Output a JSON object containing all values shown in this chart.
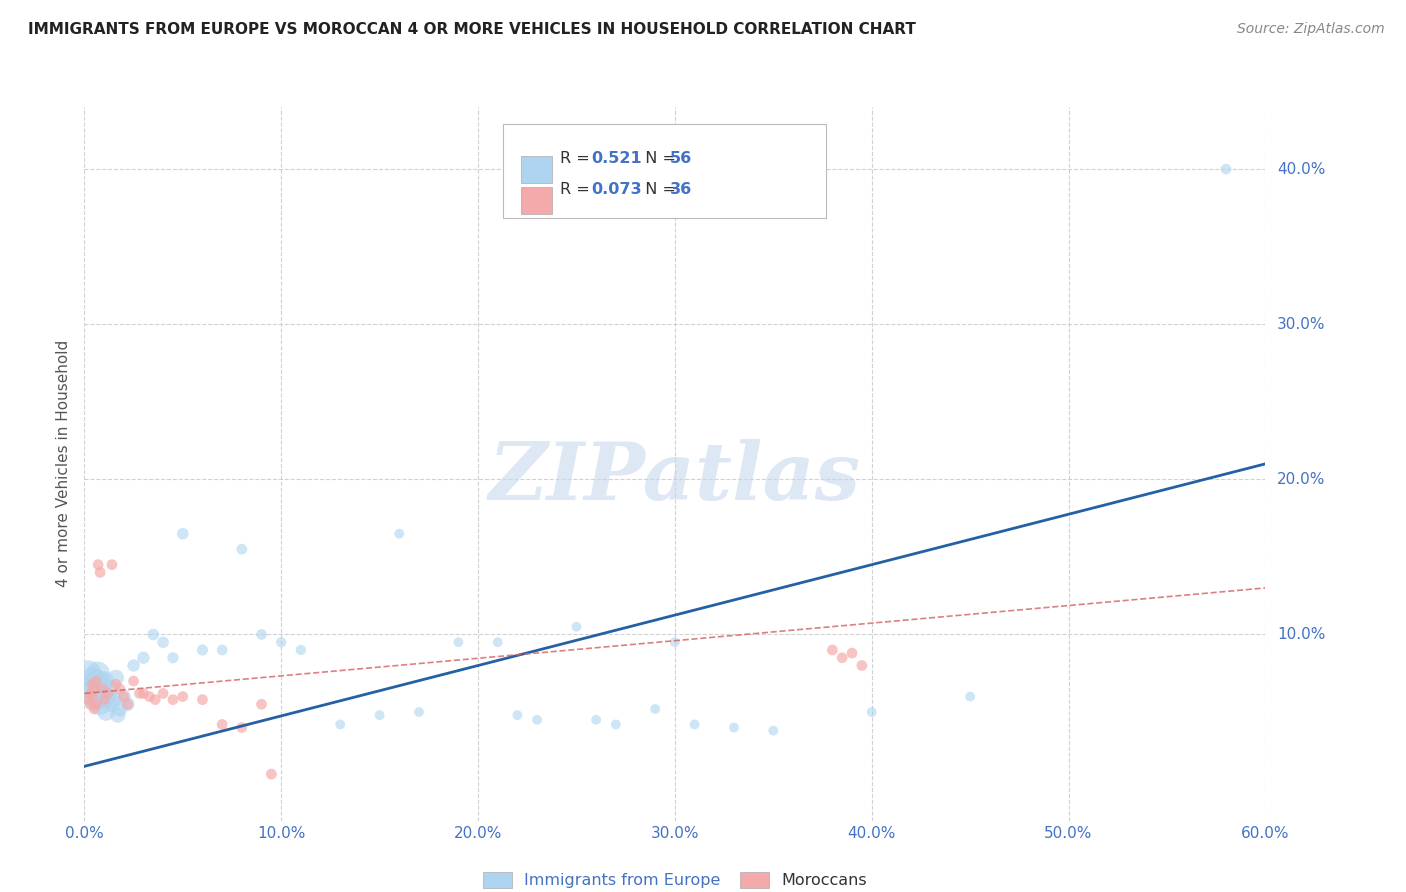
{
  "title": "IMMIGRANTS FROM EUROPE VS MOROCCAN 4 OR MORE VEHICLES IN HOUSEHOLD CORRELATION CHART",
  "source": "Source: ZipAtlas.com",
  "tick_color": "#4472C4",
  "ylabel": "4 or more Vehicles in Household",
  "xlim": [
    0.0,
    0.6
  ],
  "ylim": [
    -0.02,
    0.44
  ],
  "xticks": [
    0.0,
    0.1,
    0.2,
    0.3,
    0.4,
    0.5,
    0.6
  ],
  "yticks": [
    0.1,
    0.2,
    0.3,
    0.4
  ],
  "xtick_labels": [
    "0.0%",
    "10.0%",
    "20.0%",
    "30.0%",
    "40.0%",
    "50.0%",
    "60.0%"
  ],
  "ytick_labels": [
    "10.0%",
    "20.0%",
    "30.0%",
    "40.0%"
  ],
  "legend_europe_R": "0.521",
  "legend_europe_N": "56",
  "legend_moroccan_R": "0.073",
  "legend_moroccan_N": "36",
  "europe_color": "#AED4F0",
  "moroccan_color": "#F4AAAA",
  "europe_line_color": "#2660A4",
  "moroccan_line_color": "#D46060",
  "watermark": "ZIPatlas",
  "background_color": "#FFFFFF",
  "grid_color": "#CCCCCC",
  "europe_scatter_x": [
    0.002,
    0.004,
    0.004,
    0.005,
    0.005,
    0.006,
    0.006,
    0.007,
    0.007,
    0.008,
    0.008,
    0.009,
    0.009,
    0.01,
    0.01,
    0.011,
    0.012,
    0.013,
    0.014,
    0.015,
    0.016,
    0.017,
    0.018,
    0.02,
    0.022,
    0.025,
    0.03,
    0.035,
    0.04,
    0.045,
    0.05,
    0.06,
    0.07,
    0.08,
    0.09,
    0.1,
    0.11,
    0.13,
    0.15,
    0.16,
    0.17,
    0.19,
    0.21,
    0.22,
    0.23,
    0.25,
    0.26,
    0.27,
    0.29,
    0.3,
    0.31,
    0.33,
    0.35,
    0.4,
    0.45,
    0.58
  ],
  "europe_scatter_y": [
    0.075,
    0.068,
    0.072,
    0.065,
    0.058,
    0.062,
    0.07,
    0.075,
    0.06,
    0.055,
    0.065,
    0.058,
    0.068,
    0.062,
    0.07,
    0.05,
    0.06,
    0.065,
    0.055,
    0.058,
    0.072,
    0.048,
    0.052,
    0.06,
    0.055,
    0.08,
    0.085,
    0.1,
    0.095,
    0.085,
    0.165,
    0.09,
    0.09,
    0.155,
    0.1,
    0.095,
    0.09,
    0.042,
    0.048,
    0.165,
    0.05,
    0.095,
    0.095,
    0.048,
    0.045,
    0.105,
    0.045,
    0.042,
    0.052,
    0.095,
    0.042,
    0.04,
    0.038,
    0.05,
    0.06,
    0.4
  ],
  "europe_scatter_size": [
    350,
    280,
    260,
    310,
    240,
    220,
    300,
    280,
    260,
    240,
    200,
    180,
    180,
    170,
    200,
    160,
    160,
    150,
    130,
    130,
    140,
    120,
    120,
    100,
    100,
    80,
    80,
    70,
    70,
    65,
    70,
    65,
    60,
    60,
    60,
    55,
    55,
    50,
    50,
    50,
    50,
    50,
    50,
    50,
    50,
    50,
    50,
    50,
    50,
    50,
    50,
    50,
    50,
    50,
    50,
    60
  ],
  "moroccan_scatter_x": [
    0.002,
    0.003,
    0.003,
    0.004,
    0.004,
    0.005,
    0.005,
    0.006,
    0.006,
    0.007,
    0.008,
    0.009,
    0.01,
    0.012,
    0.014,
    0.016,
    0.018,
    0.02,
    0.022,
    0.025,
    0.028,
    0.03,
    0.033,
    0.036,
    0.04,
    0.045,
    0.05,
    0.06,
    0.07,
    0.08,
    0.09,
    0.095,
    0.38,
    0.385,
    0.39,
    0.395
  ],
  "moroccan_scatter_y": [
    0.058,
    0.062,
    0.055,
    0.068,
    0.06,
    0.065,
    0.052,
    0.07,
    0.055,
    0.145,
    0.14,
    0.065,
    0.058,
    0.062,
    0.145,
    0.068,
    0.065,
    0.06,
    0.055,
    0.07,
    0.062,
    0.062,
    0.06,
    0.058,
    0.062,
    0.058,
    0.06,
    0.058,
    0.042,
    0.04,
    0.055,
    0.01,
    0.09,
    0.085,
    0.088,
    0.08
  ],
  "europe_line_x": [
    0.0,
    0.6
  ],
  "europe_line_y": [
    0.015,
    0.21
  ],
  "moroccan_line_x": [
    0.0,
    0.6
  ],
  "moroccan_line_y": [
    0.062,
    0.13
  ]
}
